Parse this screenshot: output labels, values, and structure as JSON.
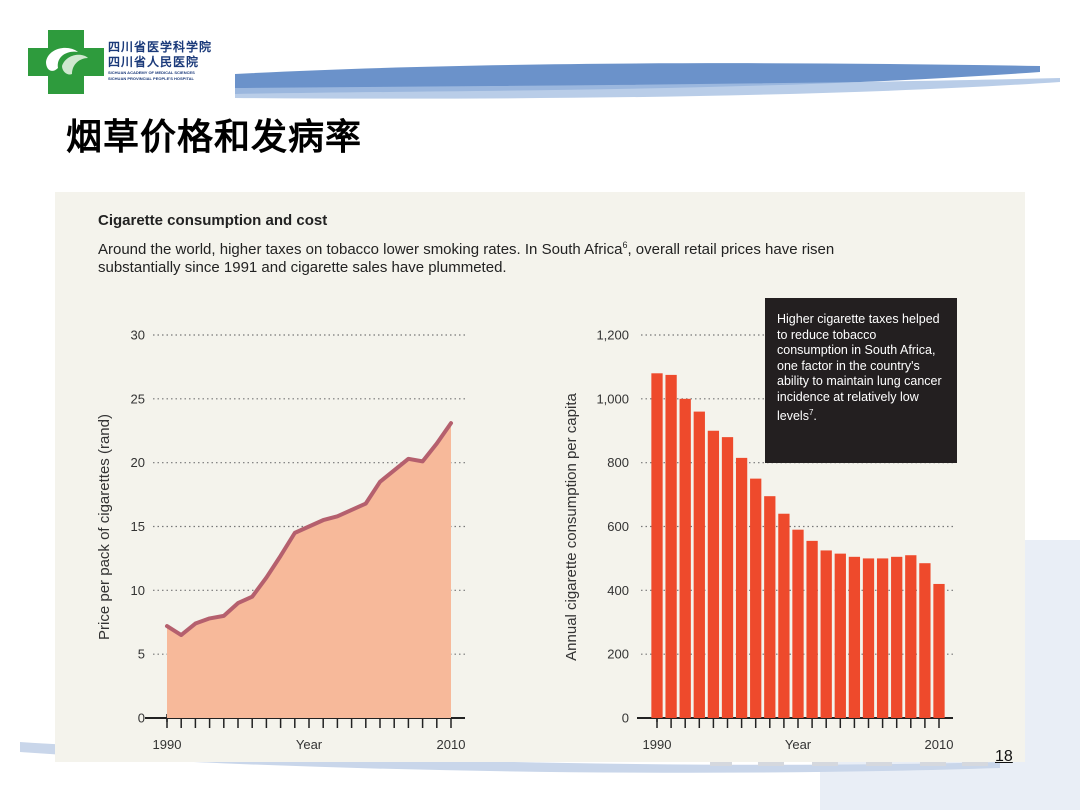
{
  "header": {
    "institution_cn_line1": "四川省医学科学院",
    "institution_cn_line2": "四川省人民医院",
    "institution_en_line1": "SICHUAN ACADEMY OF MEDICAL SCIENCES",
    "institution_en_line2": "SICHUAN PROVINCIAL PEOPLE'S HOSPITAL",
    "colors": {
      "brand_blue": "#1e5aa8",
      "brand_green": "#2e9b3d"
    }
  },
  "page": {
    "title": "烟草价格和发病率",
    "number": "18"
  },
  "figure": {
    "title": "Cigarette consumption and cost",
    "description": "Around the world, higher taxes on tobacco lower smoking rates. In South Africa",
    "description_ref": "6",
    "description_rest": ", overall retail prices have risen substantially since 1991 and cigarette sales have plummeted.",
    "callout_text": "Higher cigarette taxes helped to reduce tobacco consumption in South Africa, one factor in the country's ability to maintain lung cancer incidence at relatively low levels",
    "callout_ref": "7",
    "callout_end": "."
  },
  "chart_data": [
    {
      "type": "area",
      "xlabel": "Year",
      "ylabel": "Price per pack of cigarettes (rand)",
      "x": [
        1990,
        1991,
        1992,
        1993,
        1994,
        1995,
        1996,
        1997,
        1998,
        1999,
        2000,
        2001,
        2002,
        2003,
        2004,
        2005,
        2006,
        2007,
        2008,
        2009,
        2010
      ],
      "y": [
        7.2,
        6.5,
        7.4,
        7.8,
        8.0,
        9.0,
        9.5,
        11.0,
        12.7,
        14.5,
        15.0,
        15.5,
        15.8,
        16.3,
        16.8,
        18.5,
        19.4,
        20.3,
        20.1,
        21.5,
        23.1
      ],
      "xlim": [
        1990,
        2010
      ],
      "ylim": [
        0,
        30
      ],
      "yticks": [
        0,
        5,
        10,
        15,
        20,
        25,
        30
      ],
      "xtick_labels": [
        "1990",
        "Year",
        "2010"
      ],
      "grid": "dotted horizontal",
      "colors": {
        "fill": "#f7b99a",
        "line": "#b5606e"
      }
    },
    {
      "type": "bar",
      "xlabel": "Year",
      "ylabel": "Annual cigarette consumption per capita",
      "x": [
        1990,
        1991,
        1992,
        1993,
        1994,
        1995,
        1996,
        1997,
        1998,
        1999,
        2000,
        2001,
        2002,
        2003,
        2004,
        2005,
        2006,
        2007,
        2008,
        2009,
        2010
      ],
      "values": [
        1080,
        1075,
        1000,
        960,
        900,
        880,
        815,
        750,
        695,
        640,
        590,
        555,
        525,
        515,
        505,
        500,
        500,
        505,
        510,
        485,
        420
      ],
      "xlim": [
        1990,
        2010
      ],
      "ylim": [
        0,
        1200
      ],
      "yticks": [
        0,
        200,
        400,
        600,
        800,
        1000,
        1200
      ],
      "ytick_labels": [
        "0",
        "200",
        "400",
        "600",
        "800",
        "1,000",
        "1,200"
      ],
      "xtick_labels": [
        "1990",
        "Year",
        "2010"
      ],
      "grid": "dotted horizontal",
      "colors": {
        "bar": "#ee4a2c"
      }
    }
  ]
}
